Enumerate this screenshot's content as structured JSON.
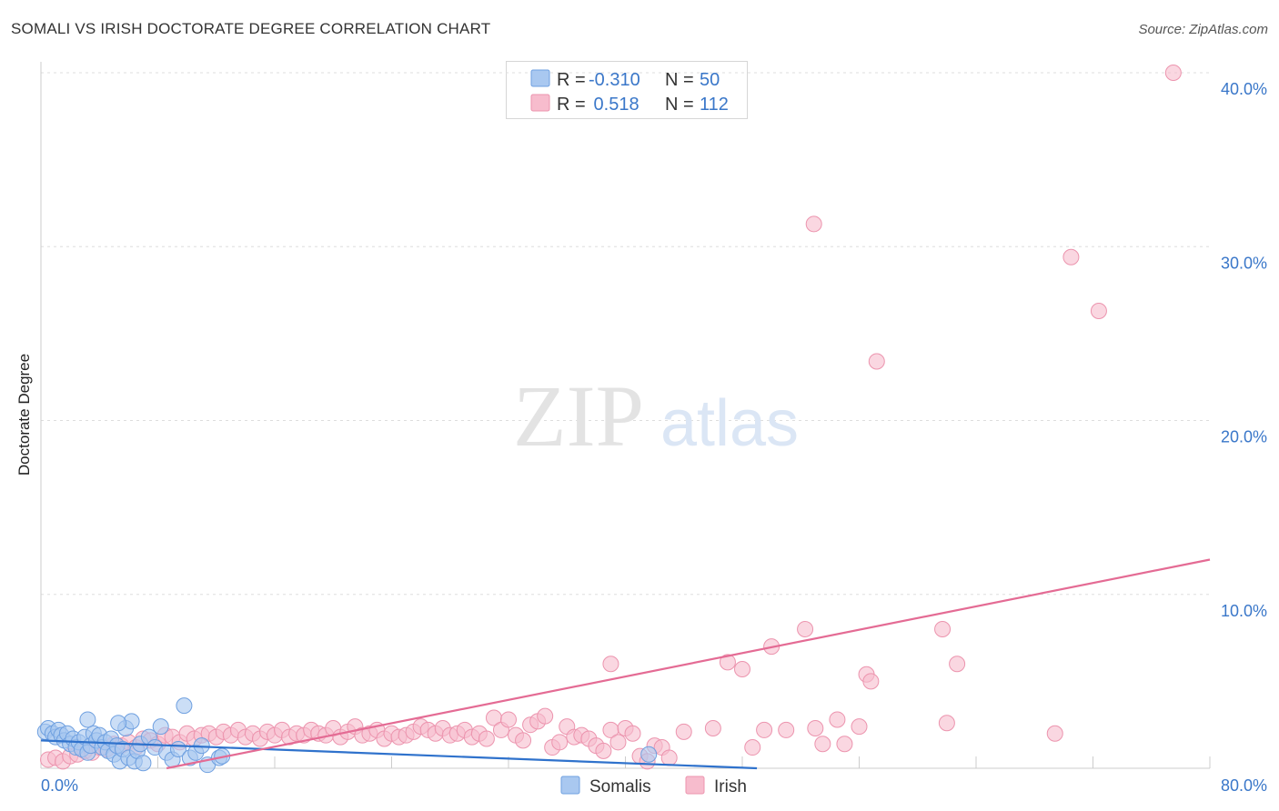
{
  "title": "SOMALI VS IRISH DOCTORATE DEGREE CORRELATION CHART",
  "source": "Source: ZipAtlas.com",
  "watermark": {
    "left": "ZIP",
    "right": "atlas"
  },
  "colors": {
    "somali_fill": "#a9c8f0",
    "somali_stroke": "#6fa0e0",
    "somali_line": "#2f72cc",
    "irish_fill": "#f7bccd",
    "irish_stroke": "#ec94ae",
    "irish_line": "#e46b94",
    "axis_tick_text": "#3a77c9",
    "grid": "#dddddd"
  },
  "legend": {
    "rows": [
      {
        "series": "Somalis",
        "r_label": "R =",
        "r_value": "-0.310",
        "n_label": "N =",
        "n_value": "50"
      },
      {
        "series": "Irish",
        "r_label": "R =",
        "r_value": " 0.518",
        "n_label": "N =",
        "n_value": "112"
      }
    ]
  },
  "chart_data": {
    "type": "scatter",
    "title": "SOMALI VS IRISH DOCTORATE DEGREE CORRELATION CHART",
    "xlabel": "",
    "ylabel": "Doctorate Degree",
    "xlim": [
      0,
      80
    ],
    "ylim": [
      0,
      40
    ],
    "x_tick_labels": [
      "0.0%",
      "80.0%"
    ],
    "y_ticks": [
      10,
      20,
      30,
      40
    ],
    "y_tick_labels": [
      "10.0%",
      "20.0%",
      "30.0%",
      "40.0%"
    ],
    "grid": true,
    "legend_position": "top-center",
    "series": [
      {
        "name": "Somalis",
        "r": -0.31,
        "n": 50,
        "trend": {
          "x": [
            0,
            49
          ],
          "y": [
            1.6,
            0.0
          ]
        },
        "points": [
          [
            0.3,
            2.1
          ],
          [
            0.5,
            2.3
          ],
          [
            0.8,
            2.0
          ],
          [
            1.0,
            1.8
          ],
          [
            1.2,
            2.2
          ],
          [
            1.4,
            1.9
          ],
          [
            1.6,
            1.6
          ],
          [
            1.8,
            2.0
          ],
          [
            2.0,
            1.4
          ],
          [
            2.2,
            1.7
          ],
          [
            2.4,
            1.2
          ],
          [
            2.6,
            1.5
          ],
          [
            2.8,
            1.1
          ],
          [
            3.0,
            1.8
          ],
          [
            3.2,
            0.9
          ],
          [
            3.4,
            1.3
          ],
          [
            3.6,
            2.0
          ],
          [
            3.8,
            1.6
          ],
          [
            4.0,
            1.9
          ],
          [
            4.2,
            1.2
          ],
          [
            4.4,
            1.5
          ],
          [
            4.6,
            1.0
          ],
          [
            4.8,
            1.7
          ],
          [
            5.0,
            0.8
          ],
          [
            5.2,
            1.3
          ],
          [
            5.4,
            0.4
          ],
          [
            5.6,
            1.1
          ],
          [
            5.8,
            2.3
          ],
          [
            6.0,
            0.6
          ],
          [
            6.2,
            2.7
          ],
          [
            6.4,
            0.4
          ],
          [
            6.6,
            1.0
          ],
          [
            6.8,
            1.4
          ],
          [
            7.0,
            0.3
          ],
          [
            7.4,
            1.8
          ],
          [
            7.8,
            1.2
          ],
          [
            8.2,
            2.4
          ],
          [
            8.6,
            0.9
          ],
          [
            9.0,
            0.5
          ],
          [
            9.4,
            1.1
          ],
          [
            9.8,
            3.6
          ],
          [
            10.2,
            0.6
          ],
          [
            10.6,
            0.9
          ],
          [
            11.0,
            1.3
          ],
          [
            11.4,
            0.2
          ],
          [
            12.2,
            0.6
          ],
          [
            12.4,
            0.7
          ],
          [
            3.2,
            2.8
          ],
          [
            5.3,
            2.6
          ],
          [
            41.6,
            0.8
          ]
        ]
      },
      {
        "name": "Irish",
        "r": 0.518,
        "n": 112,
        "trend": {
          "x": [
            8.6,
            80
          ],
          "y": [
            0.0,
            12.0
          ]
        },
        "points": [
          [
            0.5,
            0.5
          ],
          [
            1.0,
            0.6
          ],
          [
            1.5,
            0.4
          ],
          [
            2.0,
            0.7
          ],
          [
            2.5,
            0.8
          ],
          [
            3.0,
            1.0
          ],
          [
            3.5,
            0.9
          ],
          [
            4.0,
            1.2
          ],
          [
            4.5,
            1.1
          ],
          [
            5.0,
            1.4
          ],
          [
            5.5,
            1.3
          ],
          [
            6.0,
            1.5
          ],
          [
            6.5,
            1.2
          ],
          [
            7.0,
            1.7
          ],
          [
            7.5,
            1.6
          ],
          [
            8.0,
            1.4
          ],
          [
            8.5,
            1.9
          ],
          [
            9.0,
            1.8
          ],
          [
            9.5,
            1.5
          ],
          [
            10.0,
            2.0
          ],
          [
            10.5,
            1.7
          ],
          [
            11.0,
            1.9
          ],
          [
            11.5,
            2.0
          ],
          [
            12.0,
            1.8
          ],
          [
            12.5,
            2.1
          ],
          [
            13.0,
            1.9
          ],
          [
            13.5,
            2.2
          ],
          [
            14.0,
            1.8
          ],
          [
            14.5,
            2.0
          ],
          [
            15.0,
            1.7
          ],
          [
            15.5,
            2.1
          ],
          [
            16.0,
            1.9
          ],
          [
            16.5,
            2.2
          ],
          [
            17.0,
            1.8
          ],
          [
            17.5,
            2.0
          ],
          [
            18.0,
            1.9
          ],
          [
            18.5,
            2.2
          ],
          [
            19.0,
            2.0
          ],
          [
            19.5,
            1.9
          ],
          [
            20.0,
            2.3
          ],
          [
            20.5,
            1.8
          ],
          [
            21.0,
            2.1
          ],
          [
            21.5,
            2.4
          ],
          [
            22.0,
            1.9
          ],
          [
            22.5,
            2.0
          ],
          [
            23.0,
            2.2
          ],
          [
            23.5,
            1.7
          ],
          [
            24.0,
            2.0
          ],
          [
            24.5,
            1.8
          ],
          [
            25.0,
            1.9
          ],
          [
            25.5,
            2.1
          ],
          [
            26.0,
            2.4
          ],
          [
            26.5,
            2.2
          ],
          [
            27.0,
            2.0
          ],
          [
            27.5,
            2.3
          ],
          [
            28.0,
            1.9
          ],
          [
            28.5,
            2.0
          ],
          [
            29.0,
            2.2
          ],
          [
            29.5,
            1.8
          ],
          [
            30.0,
            2.0
          ],
          [
            30.5,
            1.7
          ],
          [
            31.0,
            2.9
          ],
          [
            31.5,
            2.2
          ],
          [
            32.0,
            2.8
          ],
          [
            32.5,
            1.9
          ],
          [
            33.0,
            1.6
          ],
          [
            33.5,
            2.5
          ],
          [
            34.0,
            2.7
          ],
          [
            34.5,
            3.0
          ],
          [
            35.0,
            1.2
          ],
          [
            35.5,
            1.5
          ],
          [
            36.0,
            2.4
          ],
          [
            36.5,
            1.8
          ],
          [
            37.0,
            1.9
          ],
          [
            37.5,
            1.7
          ],
          [
            38.0,
            1.3
          ],
          [
            38.5,
            1.0
          ],
          [
            39.0,
            2.2
          ],
          [
            39.5,
            1.5
          ],
          [
            40.0,
            2.3
          ],
          [
            40.5,
            2.0
          ],
          [
            41.0,
            0.7
          ],
          [
            41.5,
            0.4
          ],
          [
            42.0,
            1.3
          ],
          [
            42.5,
            1.2
          ],
          [
            43.0,
            0.6
          ],
          [
            39.0,
            6.0
          ],
          [
            47.0,
            6.1
          ],
          [
            48.0,
            5.7
          ],
          [
            49.5,
            2.2
          ],
          [
            50.0,
            7.0
          ],
          [
            52.3,
            8.0
          ],
          [
            52.9,
            31.3
          ],
          [
            51.0,
            2.2
          ],
          [
            53.0,
            2.3
          ],
          [
            53.5,
            1.4
          ],
          [
            54.5,
            2.8
          ],
          [
            55.0,
            1.4
          ],
          [
            56.0,
            2.4
          ],
          [
            56.5,
            5.4
          ],
          [
            56.8,
            5.0
          ],
          [
            57.2,
            23.4
          ],
          [
            61.7,
            8.0
          ],
          [
            62.0,
            2.6
          ],
          [
            62.7,
            6.0
          ],
          [
            69.4,
            2.0
          ],
          [
            70.5,
            29.4
          ],
          [
            72.4,
            26.3
          ],
          [
            77.5,
            40.0
          ],
          [
            48.7,
            1.2
          ],
          [
            46.0,
            2.3
          ],
          [
            44.0,
            2.1
          ]
        ]
      }
    ]
  }
}
